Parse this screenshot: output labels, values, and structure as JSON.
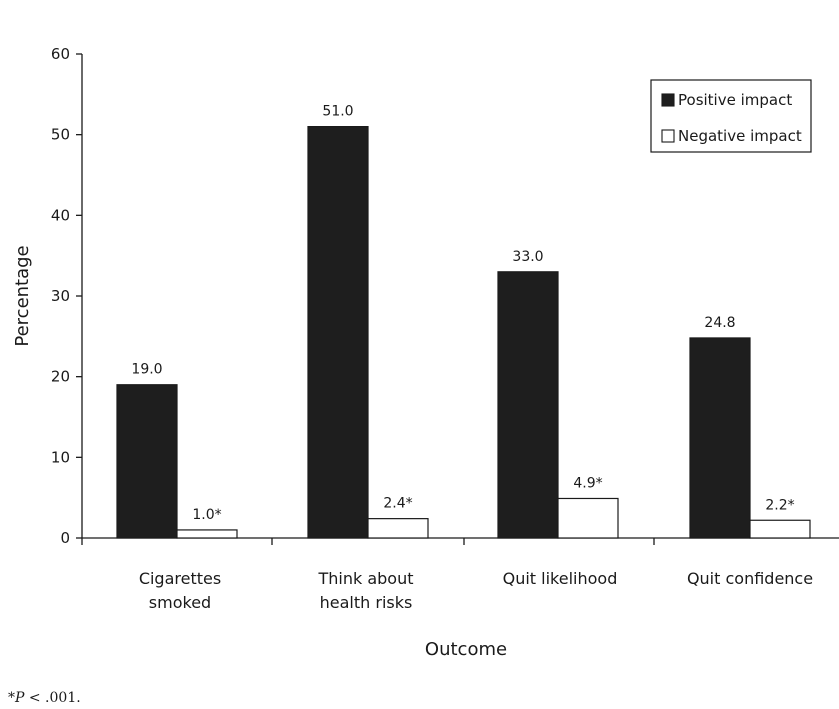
{
  "chart_data": {
    "type": "bar",
    "title": "",
    "xlabel": "Outcome",
    "ylabel": "Percentage",
    "ylim": [
      0,
      60
    ],
    "yticks": [
      0,
      10,
      20,
      30,
      40,
      50,
      60
    ],
    "grid": false,
    "legend_position": "top-right",
    "categories": [
      [
        "Cigarettes",
        "smoked"
      ],
      [
        "Think about",
        "health risks"
      ],
      [
        "Quit likelihood"
      ],
      [
        "Quit confidence"
      ]
    ],
    "series": [
      {
        "name": "Positive impact",
        "color": "#1e1e1e",
        "values": [
          19.0,
          51.0,
          33.0,
          24.8
        ],
        "labels": [
          "19.0",
          "51.0",
          "33.0",
          "24.8"
        ]
      },
      {
        "name": "Negative impact",
        "color": "#ffffff",
        "values": [
          1.0,
          2.4,
          4.9,
          2.2
        ],
        "labels": [
          "1.0*",
          "2.4*",
          "4.9*",
          "2.2*"
        ]
      }
    ]
  },
  "footnote": {
    "prefix": "*",
    "var": "P",
    "rest": " < .001."
  }
}
